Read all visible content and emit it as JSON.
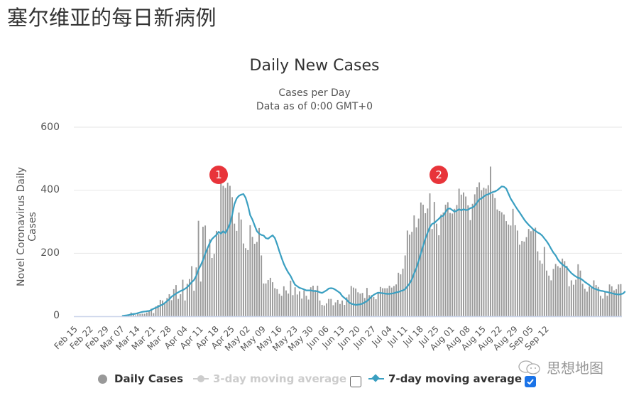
{
  "page": {
    "title": "塞尔维亚的每日新病例"
  },
  "chart": {
    "title": "Daily New Cases",
    "subtitle_1": "Cases per Day",
    "subtitle_2": "Data as of 0:00 GMT+0",
    "y_axis_label": "Novel Coronavirus Daily Cases",
    "y_ticks": [
      "600",
      "400",
      "200",
      "0"
    ],
    "x_ticks": [
      "Feb 15",
      "Feb 22",
      "Feb 29",
      "Mar 07",
      "Mar 14",
      "Mar 21",
      "Mar 28",
      "Apr 04",
      "Apr 11",
      "Apr 18",
      "Apr 25",
      "May 02",
      "May 09",
      "May 16",
      "May 23",
      "May 30",
      "Jun 06",
      "Jun 13",
      "Jun 20",
      "Jun 27",
      "Jul 04",
      "Jul 11",
      "Jul 18",
      "Jul 25",
      "Aug 01",
      "Aug 08",
      "Aug 15",
      "Aug 22",
      "Aug 29",
      "Sep 05",
      "Sep 12"
    ],
    "annotations": [
      {
        "label": "1",
        "date": "Apr 19"
      },
      {
        "label": "2",
        "date": "Jul 27"
      }
    ]
  },
  "legend": {
    "daily_cases": "Daily Cases",
    "three_day": "3-day moving average",
    "seven_day": "7-day moving average",
    "three_day_checked": false,
    "seven_day_checked": true
  },
  "watermark": {
    "text": "思想地图"
  },
  "colors": {
    "bars": "#999999",
    "line": "#3a9fc1",
    "marker": "#e8343a",
    "grid": "#e6e6e6"
  },
  "chart_data": {
    "type": "bar",
    "title": "Daily New Cases",
    "subtitle": "Cases per Day / Data as of 0:00 GMT+0",
    "xlabel": "",
    "ylabel": "Novel Coronavirus Daily Cases",
    "ylim": [
      0,
      600
    ],
    "grid": true,
    "legend_position": "bottom",
    "start_date": "Feb 15",
    "x_tick_labels": [
      "Feb 15",
      "Feb 22",
      "Feb 29",
      "Mar 07",
      "Mar 14",
      "Mar 21",
      "Mar 28",
      "Apr 04",
      "Apr 11",
      "Apr 18",
      "Apr 25",
      "May 02",
      "May 09",
      "May 16",
      "May 23",
      "May 30",
      "Jun 06",
      "Jun 13",
      "Jun 20",
      "Jun 27",
      "Jul 04",
      "Jul 11",
      "Jul 18",
      "Jul 25",
      "Aug 01",
      "Aug 08",
      "Aug 15",
      "Aug 22",
      "Aug 29",
      "Sep 05",
      "Sep 12"
    ],
    "series": [
      {
        "name": "Daily Cases",
        "type": "bar",
        "values": [
          0,
          0,
          0,
          0,
          0,
          0,
          0,
          0,
          0,
          0,
          0,
          0,
          0,
          0,
          0,
          0,
          0,
          0,
          0,
          0,
          0,
          1,
          0,
          4,
          5,
          12,
          6,
          3,
          9,
          7,
          8,
          8,
          12,
          18,
          24,
          10,
          31,
          36,
          52,
          50,
          42,
          58,
          70,
          51,
          86,
          99,
          55,
          70,
          116,
          50,
          103,
          118,
          159,
          81,
          155,
          303,
          110,
          284,
          288,
          212,
          245,
          185,
          198,
          271,
          261,
          424,
          414,
          407,
          424,
          414,
          378,
          294,
          271,
          329,
          307,
          231,
          216,
          210,
          289,
          252,
          230,
          236,
          280,
          193,
          104,
          104,
          115,
          122,
          108,
          89,
          86,
          71,
          65,
          95,
          82,
          72,
          113,
          67,
          92,
          69,
          79,
          56,
          82,
          65,
          53,
          92,
          97,
          83,
          97,
          50,
          36,
          34,
          41,
          55,
          55,
          35,
          44,
          52,
          39,
          50,
          36,
          60,
          69,
          96,
          91,
          88,
          76,
          72,
          74,
          58,
          90,
          67,
          67,
          61,
          54,
          76,
          93,
          89,
          89,
          89,
          97,
          91,
          96,
          101,
          138,
          133,
          151,
          193,
          272,
          259,
          268,
          320,
          282,
          310,
          361,
          354,
          327,
          342,
          390,
          277,
          363,
          294,
          257,
          323,
          329,
          354,
          362,
          328,
          326,
          341,
          353,
          405,
          386,
          393,
          380,
          352,
          305,
          357,
          387,
          410,
          425,
          400,
          408,
          405,
          416,
          475,
          389,
          375,
          339,
          334,
          330,
          323,
          302,
          291,
          288,
          341,
          289,
          272,
          227,
          239,
          237,
          251,
          277,
          270,
          276,
          281,
          206,
          177,
          167,
          220,
          145,
          129,
          114,
          150,
          166,
          159,
          154,
          183,
          175,
          160,
          95,
          114,
          100,
          116,
          165,
          145,
          103,
          87,
          78,
          94,
          91,
          114,
          99,
          93,
          65,
          56,
          78,
          65,
          101,
          95,
          82,
          86,
          101,
          102
        ]
      },
      {
        "name": "3-day moving average",
        "type": "line",
        "visible": false,
        "values": []
      },
      {
        "name": "7-day moving average",
        "type": "line",
        "values": [
          null,
          null,
          null,
          null,
          null,
          null,
          null,
          null,
          null,
          null,
          null,
          null,
          null,
          null,
          null,
          null,
          null,
          null,
          null,
          null,
          null,
          1,
          2,
          3,
          4,
          6,
          7,
          8,
          10,
          12,
          14,
          15,
          16,
          17,
          20,
          24,
          27,
          30,
          34,
          37,
          42,
          48,
          54,
          62,
          67,
          72,
          76,
          80,
          83,
          87,
          92,
          100,
          108,
          115,
          128,
          148,
          162,
          178,
          199,
          216,
          232,
          245,
          252,
          258,
          268,
          262,
          270,
          264,
          277,
          293,
          322,
          356,
          374,
          382,
          386,
          388,
          376,
          352,
          321,
          307,
          288,
          270,
          262,
          258,
          256,
          248,
          246,
          252,
          257,
          248,
          229,
          206,
          185,
          166,
          151,
          138,
          128,
          113,
          100,
          95,
          90,
          88,
          85,
          82,
          82,
          82,
          80,
          80,
          79,
          76,
          74,
          78,
          82,
          88,
          89,
          88,
          84,
          79,
          74,
          64,
          58,
          52,
          44,
          40,
          38,
          36,
          37,
          38,
          40,
          44,
          48,
          55,
          62,
          68,
          72,
          75,
          74,
          73,
          72,
          71,
          71,
          72,
          73,
          76,
          77,
          80,
          82,
          86,
          95,
          104,
          117,
          136,
          153,
          175,
          199,
          224,
          247,
          265,
          283,
          293,
          296,
          303,
          309,
          317,
          319,
          331,
          341,
          342,
          337,
          332,
          335,
          340,
          336,
          340,
          337,
          338,
          343,
          345,
          351,
          361,
          371,
          374,
          380,
          385,
          387,
          391,
          394,
          396,
          400,
          406,
          412,
          411,
          405,
          389,
          373,
          362,
          350,
          339,
          329,
          318,
          307,
          298,
          290,
          283,
          276,
          271,
          266,
          262,
          256,
          247,
          238,
          227,
          214,
          202,
          193,
          180,
          171,
          164,
          159,
          154,
          145,
          137,
          131,
          126,
          122,
          120,
          115,
          109,
          104,
          99,
          93,
          88,
          86,
          83,
          81,
          80,
          78,
          77,
          75,
          73,
          71,
          70,
          69,
          70,
          72,
          79
        ]
      }
    ]
  }
}
